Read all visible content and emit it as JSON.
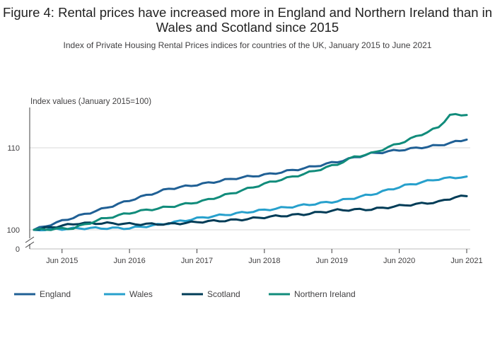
{
  "title": "Figure 4: Rental prices have increased more in England and Northern Ireland than in Wales and Scotland since 2015",
  "subtitle": "Index of Private Housing Rental Prices indices for countries of the UK, January 2015 to June 2021",
  "chart_data": {
    "type": "line",
    "ylabel": "Index values (January 2015=100)",
    "y_ticks": [
      100,
      110
    ],
    "y_axis_break": {
      "below": 100,
      "zero_label": "0"
    },
    "ylim": [
      99,
      115
    ],
    "x_ticks": [
      "Jun 2015",
      "Jun 2016",
      "Jun 2017",
      "Jun 2018",
      "Jun 2019",
      "Jun 2020",
      "Jun 2021"
    ],
    "x_tick_months": [
      5,
      17,
      29,
      41,
      53,
      65,
      77
    ],
    "x_range_months": [
      0,
      77
    ],
    "x_description": "Monthly, January 2015 to June 2021",
    "grid": "horizontal",
    "legend_position": "bottom",
    "series": [
      {
        "name": "England",
        "color": "#206095",
        "anchors": [
          [
            0,
            100.0
          ],
          [
            6,
            101.3
          ],
          [
            12,
            102.5
          ],
          [
            18,
            103.8
          ],
          [
            24,
            105.0
          ],
          [
            30,
            105.6
          ],
          [
            36,
            106.3
          ],
          [
            42,
            106.8
          ],
          [
            48,
            107.5
          ],
          [
            54,
            108.3
          ],
          [
            60,
            109.3
          ],
          [
            66,
            109.8
          ],
          [
            72,
            110.3
          ],
          [
            77,
            111.0
          ]
        ]
      },
      {
        "name": "Wales",
        "color": "#27A0CC",
        "anchors": [
          [
            0,
            100.0
          ],
          [
            9,
            100.2
          ],
          [
            17,
            100.2
          ],
          [
            22,
            100.6
          ],
          [
            30,
            101.5
          ],
          [
            36,
            102.0
          ],
          [
            42,
            102.5
          ],
          [
            48,
            103.0
          ],
          [
            54,
            103.5
          ],
          [
            60,
            104.3
          ],
          [
            66,
            105.4
          ],
          [
            72,
            106.2
          ],
          [
            77,
            106.5
          ]
        ]
      },
      {
        "name": "Scotland",
        "color": "#003C57",
        "anchors": [
          [
            0,
            100.0
          ],
          [
            8,
            100.8
          ],
          [
            13,
            100.8
          ],
          [
            18,
            100.7
          ],
          [
            24,
            100.7
          ],
          [
            30,
            101.0
          ],
          [
            36,
            101.2
          ],
          [
            42,
            101.6
          ],
          [
            48,
            101.9
          ],
          [
            54,
            102.4
          ],
          [
            60,
            102.5
          ],
          [
            66,
            103.0
          ],
          [
            72,
            103.4
          ],
          [
            75,
            104.0
          ],
          [
            77,
            104.1
          ]
        ]
      },
      {
        "name": "Northern Ireland",
        "color": "#118C7B",
        "anchors": [
          [
            0,
            100.0
          ],
          [
            7,
            100.2
          ],
          [
            12,
            101.3
          ],
          [
            18,
            102.2
          ],
          [
            24,
            102.8
          ],
          [
            30,
            103.5
          ],
          [
            36,
            104.6
          ],
          [
            42,
            105.8
          ],
          [
            48,
            106.8
          ],
          [
            54,
            108.0
          ],
          [
            57,
            108.9
          ],
          [
            60,
            109.3
          ],
          [
            66,
            110.8
          ],
          [
            72,
            112.5
          ],
          [
            74,
            114.0
          ],
          [
            77,
            114.0
          ]
        ]
      }
    ]
  }
}
